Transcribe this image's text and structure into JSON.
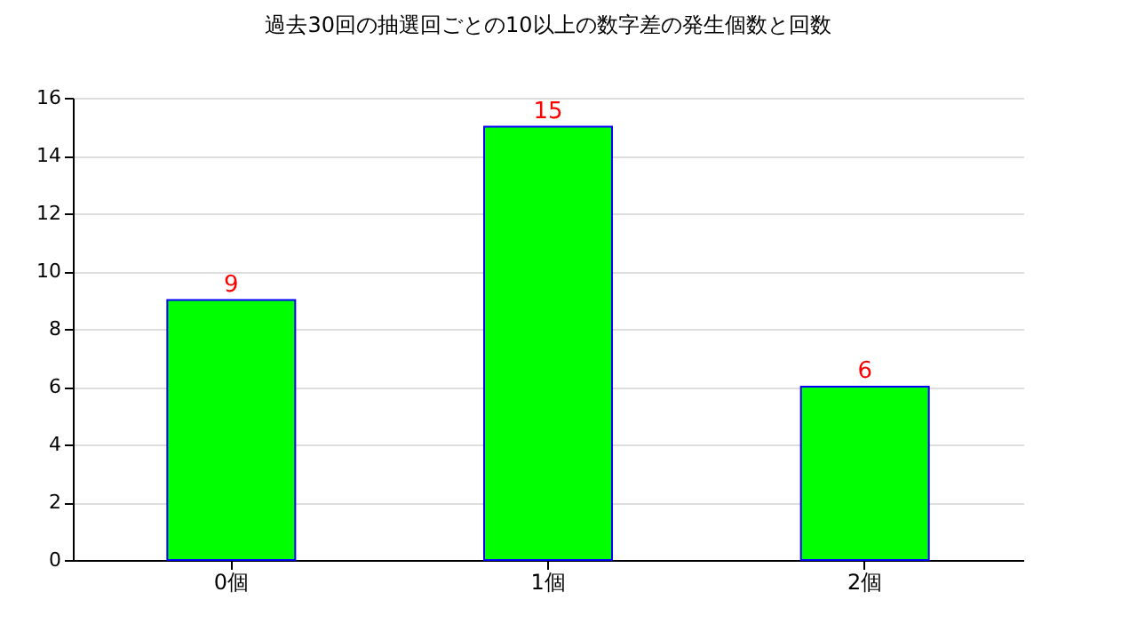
{
  "chart_data": {
    "type": "bar",
    "title": "過去30回の抽選回ごとの10以上の数字差の発生個数と回数",
    "categories": [
      "0個",
      "1個",
      "2個"
    ],
    "values": [
      9,
      15,
      6
    ],
    "color": "#00ff00",
    "ylim": [
      0,
      16
    ],
    "yticks": [
      0,
      2,
      4,
      6,
      8,
      10,
      12,
      14,
      16
    ],
    "grid": "y",
    "data_labels": true
  }
}
